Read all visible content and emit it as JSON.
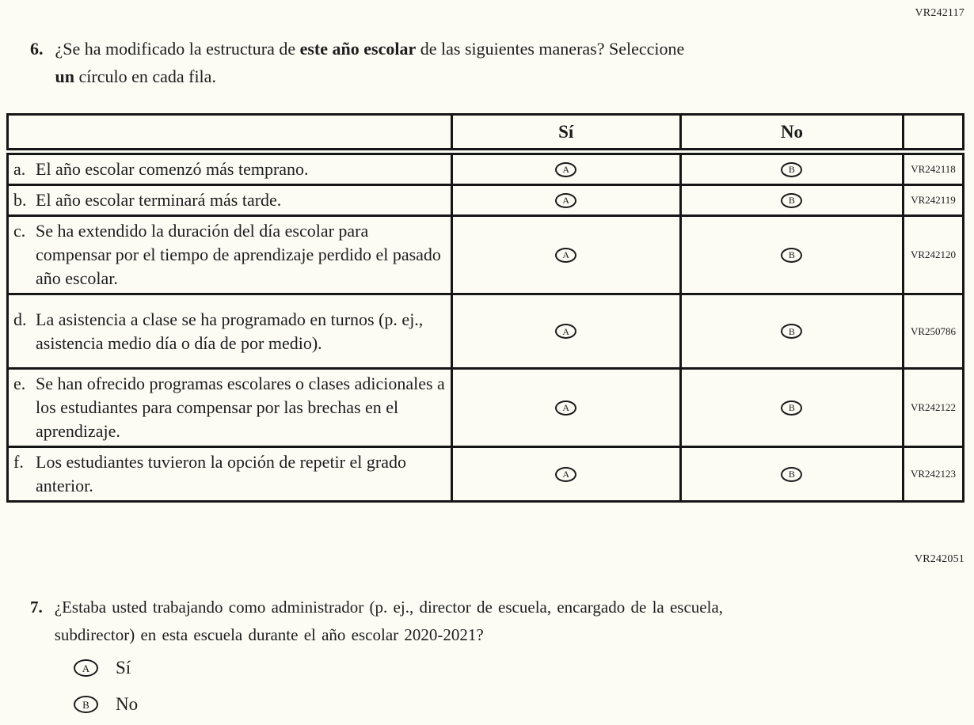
{
  "codes": {
    "q6_header": "VR242117",
    "q7_header": "VR242051"
  },
  "q6": {
    "number": "6.",
    "line1_pre": "¿Se ha modificado la estructura de ",
    "line1_bold": "este año escolar",
    "line1_post": " de las siguientes maneras? Seleccione",
    "line2_bold": "un",
    "line2_post": " círculo en cada fila."
  },
  "table": {
    "header_si": "Sí",
    "header_no": "No",
    "bubble_a": "A",
    "bubble_b": "B",
    "rows": [
      {
        "letter": "a.",
        "text": "El año escolar comenzó más temprano.",
        "code": "VR242118"
      },
      {
        "letter": "b.",
        "text": "El año escolar terminará más tarde.",
        "code": "VR242119"
      },
      {
        "letter": "c.",
        "text": "Se ha extendido la duración del día escolar para compensar por el tiempo de aprendizaje perdido el pasado año escolar.",
        "code": "VR242120"
      },
      {
        "letter": "d.",
        "text": "La asistencia a clase se ha programado en turnos (p. ej., asistencia medio día o día de por medio).",
        "code": "VR250786"
      },
      {
        "letter": "e.",
        "text": "Se han ofrecido programas escolares o clases adicionales a los estudiantes para compensar por las brechas en el aprendizaje.",
        "code": "VR242122"
      },
      {
        "letter": "f.",
        "text": "Los estudiantes tuvieron la opción de repetir el grado anterior.",
        "code": "VR242123"
      }
    ]
  },
  "q7": {
    "number": "7.",
    "line1": "¿Estaba usted trabajando como administrador (p. ej., director de escuela, encargado de la escuela,",
    "line2": "subdirector) en esta escuela durante el año escolar 2020-2021?",
    "options": [
      {
        "letter": "A",
        "label": "Sí"
      },
      {
        "letter": "B",
        "label": "No"
      }
    ]
  }
}
